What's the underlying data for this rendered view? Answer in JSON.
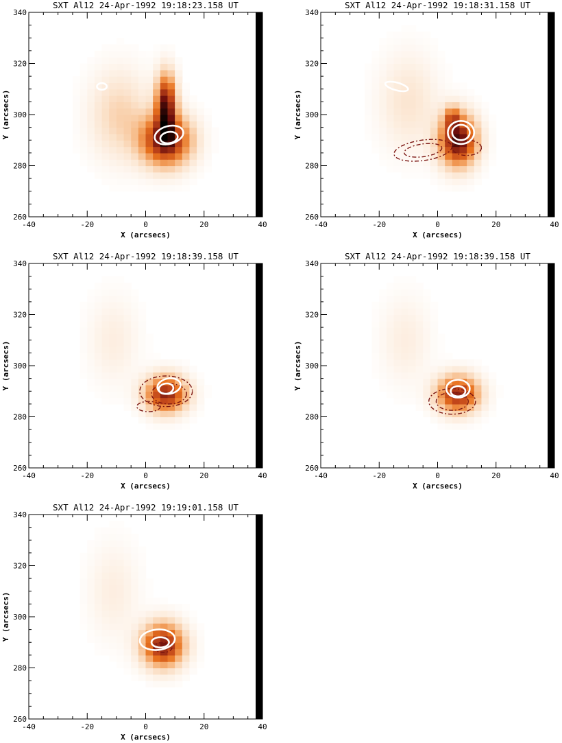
{
  "figure": {
    "x_label": "X (arcsecs)",
    "y_label": "Y (arcsecs)"
  },
  "chart_data": [
    {
      "type": "heatmap",
      "title": "SXT Al12  24-Apr-1992 19:18:23.158 UT",
      "xlabel": "X (arcsecs)",
      "ylabel": "Y (arcsecs)",
      "xlim": [
        -40,
        40
      ],
      "ylim": [
        260,
        340
      ],
      "x_ticks": [
        "-40",
        "-20",
        "0",
        "20",
        "40"
      ],
      "y_ticks": [
        "260",
        "280",
        "300",
        "320",
        "340"
      ],
      "grid": false,
      "colormap": [
        "#ffffff",
        "#fbe3cc",
        "#f6b37a",
        "#e8721e",
        "#c0451a",
        "#6e0f0c",
        "#000000"
      ],
      "emission_sources": [
        {
          "x": 7,
          "y": 290,
          "sx": 6,
          "sy": 7,
          "peak": 0.85
        },
        {
          "x": 7,
          "y": 305,
          "sx": 2.4,
          "sy": 8,
          "peak": 0.8
        },
        {
          "x": -9,
          "y": 300,
          "sx": 7,
          "sy": 12,
          "peak": 0.22
        }
      ],
      "contours_white": [
        {
          "x": 8,
          "y": 292,
          "rx": 5,
          "ry": 3.5,
          "rot": 15
        },
        {
          "x": 8,
          "y": 291,
          "rx": 3,
          "ry": 2.2,
          "rot": 10
        },
        {
          "x": -15,
          "y": 311,
          "rx": 1.7,
          "ry": 1.3,
          "rot": 0
        }
      ],
      "contours_dashed": []
    },
    {
      "type": "heatmap",
      "title": "SXT Al12  24-Apr-1992 19:18:31.158 UT",
      "xlabel": "X (arcsecs)",
      "ylabel": "Y (arcsecs)",
      "xlim": [
        -40,
        40
      ],
      "ylim": [
        260,
        340
      ],
      "x_ticks": [
        "-40",
        "-20",
        "0",
        "20",
        "40"
      ],
      "y_ticks": [
        "260",
        "280",
        "300",
        "320",
        "340"
      ],
      "grid": false,
      "colormap": [
        "#ffffff",
        "#fbe3cc",
        "#f6b37a",
        "#e8721e",
        "#c0451a",
        "#6e0f0c",
        "#000000"
      ],
      "emission_sources": [
        {
          "x": 7,
          "y": 290,
          "sx": 4.5,
          "sy": 7,
          "peak": 0.9
        },
        {
          "x": 5,
          "y": 299,
          "sx": 1.8,
          "sy": 3,
          "peak": 0.35
        },
        {
          "x": -10,
          "y": 305,
          "sx": 7,
          "sy": 13,
          "peak": 0.15
        }
      ],
      "contours_white": [
        {
          "x": 8,
          "y": 293,
          "rx": 4.5,
          "ry": 4.5,
          "rot": 0
        },
        {
          "x": 8,
          "y": 293,
          "rx": 3,
          "ry": 3,
          "rot": 0
        },
        {
          "x": -14,
          "y": 311,
          "rx": 4,
          "ry": 1.5,
          "rot": -15
        }
      ],
      "contours_dashed": [
        {
          "x": -5,
          "y": 286,
          "rx": 10,
          "ry": 4,
          "rot": 8
        },
        {
          "x": -5,
          "y": 286,
          "rx": 6.5,
          "ry": 2.5,
          "rot": 8
        },
        {
          "x": 10,
          "y": 287,
          "rx": 5,
          "ry": 3,
          "rot": 0
        }
      ]
    },
    {
      "type": "heatmap",
      "title": "SXT Al12  24-Apr-1992 19:18:39.158 UT",
      "xlabel": "X (arcsecs)",
      "ylabel": "Y (arcsecs)",
      "xlim": [
        -40,
        40
      ],
      "ylim": [
        260,
        340
      ],
      "x_ticks": [
        "-40",
        "-20",
        "0",
        "20",
        "40"
      ],
      "y_ticks": [
        "260",
        "280",
        "300",
        "320",
        "340"
      ],
      "grid": false,
      "colormap": [
        "#ffffff",
        "#fbe3cc",
        "#f6b37a",
        "#e8721e",
        "#c0451a",
        "#6e0f0c",
        "#000000"
      ],
      "emission_sources": [
        {
          "x": 7,
          "y": 289,
          "sx": 5,
          "sy": 5,
          "peak": 0.78
        },
        {
          "x": -11,
          "y": 310,
          "sx": 6,
          "sy": 12,
          "peak": 0.1
        }
      ],
      "contours_white": [
        {
          "x": 8,
          "y": 292,
          "rx": 4,
          "ry": 3,
          "rot": 10
        },
        {
          "x": 7,
          "y": 291,
          "rx": 2.5,
          "ry": 2,
          "rot": 10
        }
      ],
      "contours_dashed": [
        {
          "x": 7,
          "y": 290,
          "rx": 9,
          "ry": 6,
          "rot": 0
        },
        {
          "x": 8,
          "y": 289,
          "rx": 6,
          "ry": 4,
          "rot": 0
        },
        {
          "x": 1,
          "y": 284,
          "rx": 4,
          "ry": 2,
          "rot": 0
        }
      ]
    },
    {
      "type": "heatmap",
      "title": "SXT Al12  24-Apr-1992 19:18:39.158 UT",
      "xlabel": "X (arcsecs)",
      "ylabel": "Y (arcsecs)",
      "xlim": [
        -40,
        40
      ],
      "ylim": [
        260,
        340
      ],
      "x_ticks": [
        "-40",
        "-20",
        "0",
        "20",
        "40"
      ],
      "y_ticks": [
        "260",
        "280",
        "300",
        "320",
        "340"
      ],
      "grid": false,
      "colormap": [
        "#ffffff",
        "#fbe3cc",
        "#f6b37a",
        "#e8721e",
        "#c0451a",
        "#6e0f0c",
        "#000000"
      ],
      "emission_sources": [
        {
          "x": 7,
          "y": 289,
          "sx": 5,
          "sy": 5,
          "peak": 0.78
        },
        {
          "x": -11,
          "y": 310,
          "sx": 6,
          "sy": 12,
          "peak": 0.1
        }
      ],
      "contours_white": [
        {
          "x": 7,
          "y": 291,
          "rx": 4,
          "ry": 3.5,
          "rot": 0
        },
        {
          "x": 7,
          "y": 290,
          "rx": 2.5,
          "ry": 2,
          "rot": 0
        }
      ],
      "contours_dashed": [
        {
          "x": 5,
          "y": 286,
          "rx": 8,
          "ry": 5,
          "rot": 0
        },
        {
          "x": 5,
          "y": 286,
          "rx": 5.5,
          "ry": 3.5,
          "rot": 0
        }
      ]
    },
    {
      "type": "heatmap",
      "title": "SXT Al12  24-Apr-1992 19:19:01.158 UT",
      "xlabel": "X (arcsecs)",
      "ylabel": "Y (arcsecs)",
      "xlim": [
        -40,
        40
      ],
      "ylim": [
        260,
        340
      ],
      "x_ticks": [
        "-40",
        "-20",
        "0",
        "20",
        "40"
      ],
      "y_ticks": [
        "260",
        "280",
        "300",
        "320",
        "340"
      ],
      "grid": false,
      "colormap": [
        "#ffffff",
        "#fbe3cc",
        "#f6b37a",
        "#e8721e",
        "#c0451a",
        "#6e0f0c",
        "#000000"
      ],
      "emission_sources": [
        {
          "x": 6,
          "y": 289,
          "sx": 5,
          "sy": 6,
          "peak": 0.82
        },
        {
          "x": -11,
          "y": 310,
          "sx": 6,
          "sy": 13,
          "peak": 0.1
        }
      ],
      "contours_white": [
        {
          "x": 4,
          "y": 291,
          "rx": 6,
          "ry": 4,
          "rot": 5
        },
        {
          "x": 5,
          "y": 290,
          "rx": 3,
          "ry": 2,
          "rot": 0
        }
      ],
      "contours_dashed": [
        {
          "x": 6,
          "y": 288,
          "rx": 3,
          "ry": 2,
          "rot": 0
        }
      ]
    }
  ]
}
